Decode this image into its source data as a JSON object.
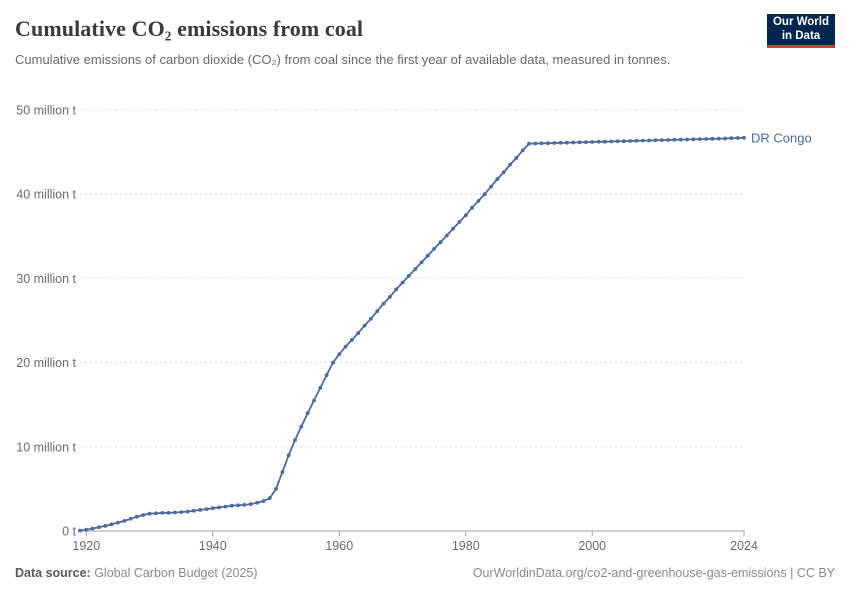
{
  "header": {
    "title": "Cumulative CO₂ emissions from coal",
    "subtitle": "Cumulative emissions of carbon dioxide (CO₂) from coal since the first year of available data, measured in tonnes.",
    "logo": {
      "line1": "Our World",
      "line2": "in Data",
      "bg_color": "#00264d",
      "accent_color": "#e0363b"
    }
  },
  "footer": {
    "datasource_label": "Data source:",
    "datasource_value": " Global Carbon Budget (2025)",
    "attribution": "OurWorldinData.org/co2-and-greenhouse-gas-emissions | CC BY"
  },
  "chart_data": {
    "type": "line",
    "title": "Cumulative CO₂ emissions from coal",
    "xlabel": "",
    "ylabel": "",
    "xlim": [
      1919,
      2024
    ],
    "ylim": [
      0,
      50
    ],
    "grid": "dashed-horizontal",
    "legend_position": "end-of-line",
    "line_color": "#4c6a9c",
    "grid_color": "#dcdcdc",
    "axis_color": "#a1a1a1",
    "tick_label_color": "#6b6b6b",
    "x_ticks": [
      {
        "value": 1920,
        "label": "1920"
      },
      {
        "value": 1940,
        "label": "1940"
      },
      {
        "value": 1960,
        "label": "1960"
      },
      {
        "value": 1980,
        "label": "1980"
      },
      {
        "value": 2000,
        "label": "2000"
      },
      {
        "value": 2024,
        "label": "2024"
      }
    ],
    "y_ticks": [
      {
        "value": 0,
        "label": "0 t"
      },
      {
        "value": 10,
        "label": "10 million t"
      },
      {
        "value": 20,
        "label": "20 million t"
      },
      {
        "value": 30,
        "label": "30 million t"
      },
      {
        "value": 40,
        "label": "40 million t"
      },
      {
        "value": 50,
        "label": "50 million t"
      }
    ],
    "x": [
      1919,
      1920,
      1921,
      1922,
      1923,
      1924,
      1925,
      1926,
      1927,
      1928,
      1929,
      1930,
      1931,
      1932,
      1933,
      1934,
      1935,
      1936,
      1937,
      1938,
      1939,
      1940,
      1941,
      1942,
      1943,
      1944,
      1945,
      1946,
      1947,
      1948,
      1949,
      1950,
      1951,
      1952,
      1953,
      1954,
      1955,
      1956,
      1957,
      1958,
      1959,
      1960,
      1961,
      1962,
      1963,
      1964,
      1965,
      1966,
      1967,
      1968,
      1969,
      1970,
      1971,
      1972,
      1973,
      1974,
      1975,
      1976,
      1977,
      1978,
      1979,
      1980,
      1981,
      1982,
      1983,
      1984,
      1985,
      1986,
      1987,
      1988,
      1989,
      1990,
      1991,
      1992,
      1993,
      1994,
      1995,
      1996,
      1997,
      1998,
      1999,
      2000,
      2001,
      2002,
      2003,
      2004,
      2005,
      2006,
      2007,
      2008,
      2009,
      2010,
      2011,
      2012,
      2013,
      2014,
      2015,
      2016,
      2017,
      2018,
      2019,
      2020,
      2021,
      2022,
      2023,
      2024
    ],
    "series": [
      {
        "name": "DR Congo",
        "unit": "million t",
        "values": [
          0.05,
          0.15,
          0.3,
          0.45,
          0.6,
          0.8,
          1.0,
          1.2,
          1.45,
          1.7,
          1.9,
          2.05,
          2.1,
          2.15,
          2.15,
          2.2,
          2.25,
          2.3,
          2.4,
          2.5,
          2.6,
          2.7,
          2.8,
          2.9,
          3.0,
          3.05,
          3.1,
          3.2,
          3.35,
          3.55,
          3.9,
          5.0,
          7.0,
          9.0,
          10.8,
          12.4,
          14.0,
          15.5,
          17.0,
          18.5,
          20.0,
          21.0,
          21.9,
          22.7,
          23.5,
          24.4,
          25.2,
          26.1,
          27.0,
          27.8,
          28.7,
          29.5,
          30.3,
          31.1,
          31.9,
          32.7,
          33.5,
          34.3,
          35.1,
          35.9,
          36.7,
          37.5,
          38.4,
          39.2,
          40.0,
          40.9,
          41.8,
          42.6,
          43.5,
          44.3,
          45.2,
          46.0,
          46.02,
          46.04,
          46.06,
          46.08,
          46.1,
          46.12,
          46.14,
          46.16,
          46.18,
          46.2,
          46.22,
          46.24,
          46.26,
          46.28,
          46.3,
          46.32,
          46.34,
          46.36,
          46.38,
          46.4,
          46.42,
          46.44,
          46.46,
          46.48,
          46.5,
          46.52,
          46.54,
          46.56,
          46.58,
          46.6,
          46.62,
          46.65,
          46.68,
          46.7
        ]
      }
    ]
  }
}
